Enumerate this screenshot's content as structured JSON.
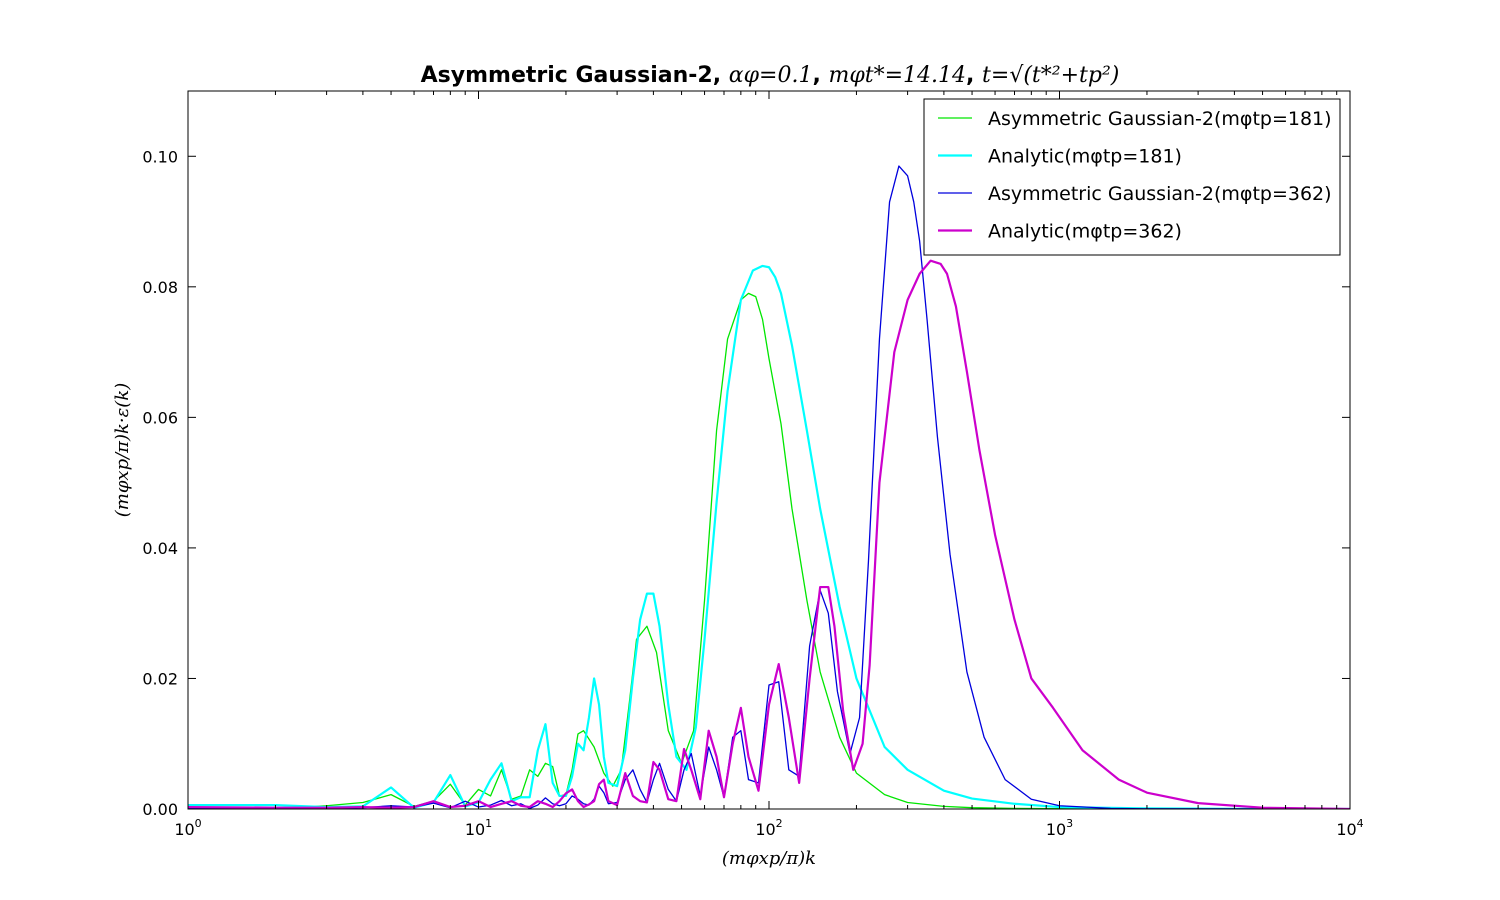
{
  "chart_data": {
    "type": "line",
    "title": {
      "prefix": "Asymmetric Gaussian-2, ",
      "alpha": "αφ=0.1",
      "sep1": ", ",
      "mt": "mφt*=14.14",
      "sep2": ", ",
      "tdef": "t=√(t*²+tp²)"
    },
    "xlabel": "(mφxp/π)k",
    "ylabel": "(mφxp/π)k·ε(k)",
    "x_scale": "log",
    "xlim": [
      1,
      10000
    ],
    "ylim": [
      0,
      0.11
    ],
    "x_ticks": [
      1,
      10,
      100,
      1000,
      10000
    ],
    "x_tick_labels": [
      {
        "base": "10",
        "exp": "0"
      },
      {
        "base": "10",
        "exp": "1"
      },
      {
        "base": "10",
        "exp": "2"
      },
      {
        "base": "10",
        "exp": "3"
      },
      {
        "base": "10",
        "exp": "4"
      }
    ],
    "y_ticks": [
      0,
      0.02,
      0.04,
      0.06,
      0.08,
      0.1
    ],
    "y_tick_labels": [
      "0.00",
      "0.02",
      "0.04",
      "0.06",
      "0.08",
      "0.10"
    ],
    "grid": false,
    "legend_position": "top-right",
    "series": [
      {
        "name": "Asymmetric Gaussian-2(mφtp=181)",
        "color": "#00e600",
        "width": 1.3,
        "x": [
          1,
          2,
          3,
          4,
          5,
          6,
          7,
          8,
          9,
          10,
          11,
          12,
          13,
          14,
          15,
          16,
          17,
          18,
          19,
          20,
          21,
          22,
          23,
          25,
          27,
          29,
          31,
          33,
          35,
          38,
          41,
          45,
          50,
          55,
          60,
          66,
          72,
          80,
          85,
          90,
          95,
          100,
          110,
          120,
          135,
          150,
          175,
          200,
          250,
          300,
          400,
          500,
          700,
          1000,
          2000,
          10000
        ],
        "y": [
          0.0001,
          0.0001,
          0.0005,
          0.001,
          0.0022,
          0.0004,
          0.0012,
          0.0038,
          0.0006,
          0.003,
          0.002,
          0.006,
          0.0015,
          0.002,
          0.006,
          0.005,
          0.007,
          0.0065,
          0.002,
          0.0022,
          0.006,
          0.0115,
          0.012,
          0.0095,
          0.0055,
          0.0035,
          0.006,
          0.016,
          0.026,
          0.028,
          0.024,
          0.012,
          0.007,
          0.012,
          0.032,
          0.058,
          0.072,
          0.078,
          0.079,
          0.0785,
          0.075,
          0.069,
          0.059,
          0.046,
          0.032,
          0.021,
          0.011,
          0.0055,
          0.0022,
          0.001,
          0.0004,
          0.0002,
          0.0001,
          5e-05,
          2e-05,
          0
        ]
      },
      {
        "name": "Analytic(mφtp=181)",
        "color": "#00ffff",
        "width": 2.2,
        "x": [
          1,
          2,
          3,
          4,
          5,
          6,
          7,
          8,
          9,
          10,
          11,
          12,
          13,
          14,
          15,
          16,
          17,
          18,
          19,
          20,
          21,
          22,
          23,
          24,
          25,
          26,
          27,
          28,
          30,
          32,
          34,
          36,
          38,
          40,
          42,
          45,
          48,
          52,
          56,
          60,
          66,
          72,
          80,
          88,
          95,
          100,
          105,
          110,
          120,
          135,
          150,
          175,
          200,
          250,
          300,
          400,
          500,
          700,
          1000,
          2000,
          4000,
          10000
        ],
        "y": [
          0.0006,
          0.0006,
          0.0003,
          0.0004,
          0.0033,
          0.0002,
          0.001,
          0.0052,
          0.0004,
          0.001,
          0.0045,
          0.007,
          0.0012,
          0.0018,
          0.0018,
          0.009,
          0.013,
          0.004,
          0.002,
          0.002,
          0.005,
          0.01,
          0.009,
          0.014,
          0.02,
          0.016,
          0.008,
          0.004,
          0.0035,
          0.009,
          0.02,
          0.029,
          0.033,
          0.033,
          0.028,
          0.016,
          0.008,
          0.006,
          0.0125,
          0.026,
          0.047,
          0.064,
          0.078,
          0.0825,
          0.0832,
          0.083,
          0.0815,
          0.079,
          0.071,
          0.058,
          0.046,
          0.031,
          0.02,
          0.0095,
          0.006,
          0.0028,
          0.0016,
          0.0008,
          0.0003,
          0.0001,
          3e-05,
          0
        ]
      },
      {
        "name": "Asymmetric Gaussian-2(mφtp=362)",
        "color": "#0000dd",
        "width": 1.3,
        "x": [
          1,
          2,
          3,
          4,
          5,
          6,
          7,
          8,
          9,
          10,
          11,
          12,
          13,
          14,
          15,
          16,
          17,
          18,
          19,
          20,
          21,
          22,
          23,
          24,
          25,
          26,
          27,
          28,
          30,
          32,
          34,
          36,
          38,
          40,
          42,
          45,
          48,
          51,
          54,
          58,
          62,
          66,
          70,
          75,
          80,
          85,
          92,
          100,
          108,
          117,
          127,
          138,
          150,
          160,
          172,
          190,
          205,
          220,
          240,
          260,
          280,
          300,
          315,
          330,
          350,
          380,
          420,
          480,
          550,
          650,
          800,
          1000,
          1500,
          2000,
          10000
        ],
        "y": [
          0.0001,
          0.0001,
          0.0001,
          0.0002,
          0.0005,
          0.0003,
          0.0009,
          0.0002,
          0.0012,
          0.0003,
          0.0006,
          0.0013,
          0.0005,
          0.0008,
          0.0001,
          0.0006,
          0.0017,
          0.0008,
          0.0005,
          0.0008,
          0.002,
          0.0015,
          0.0008,
          0.0006,
          0.0015,
          0.0035,
          0.0025,
          0.0008,
          0.001,
          0.0045,
          0.006,
          0.003,
          0.001,
          0.0045,
          0.007,
          0.003,
          0.0012,
          0.006,
          0.0085,
          0.002,
          0.0095,
          0.006,
          0.0018,
          0.011,
          0.012,
          0.0045,
          0.004,
          0.019,
          0.0195,
          0.006,
          0.005,
          0.025,
          0.0335,
          0.03,
          0.018,
          0.0085,
          0.014,
          0.038,
          0.072,
          0.093,
          0.0985,
          0.097,
          0.093,
          0.087,
          0.075,
          0.057,
          0.039,
          0.021,
          0.011,
          0.0045,
          0.0015,
          0.0005,
          0.0001,
          3e-05,
          0
        ]
      },
      {
        "name": "Analytic(mφtp=362)",
        "color": "#cc00cc",
        "width": 2.2,
        "x": [
          1,
          2,
          3,
          4,
          5,
          6,
          7,
          8,
          9,
          10,
          11,
          12,
          13,
          14,
          15,
          16,
          17,
          18,
          19,
          20,
          21,
          22,
          23,
          24,
          25,
          26,
          27,
          28,
          30,
          32,
          34,
          36,
          38,
          40,
          42,
          45,
          48,
          51,
          54,
          58,
          62,
          66,
          70,
          75,
          80,
          85,
          92,
          100,
          108,
          117,
          127,
          138,
          150,
          160,
          168,
          180,
          195,
          210,
          222,
          240,
          270,
          300,
          330,
          360,
          390,
          410,
          440,
          480,
          530,
          600,
          700,
          800,
          950,
          1200,
          1600,
          2000,
          3000,
          5000,
          10000
        ],
        "y": [
          0.0003,
          0.0002,
          0.0002,
          0.0003,
          0.0002,
          0.0003,
          0.0012,
          0.0003,
          0.0005,
          0.0012,
          0.0003,
          0.0008,
          0.0012,
          0.0005,
          0.0003,
          0.0012,
          0.0008,
          0.0003,
          0.0012,
          0.0024,
          0.003,
          0.0012,
          0.0003,
          0.0007,
          0.0012,
          0.0038,
          0.0045,
          0.0012,
          0.0006,
          0.0055,
          0.002,
          0.0012,
          0.001,
          0.0072,
          0.006,
          0.0015,
          0.0012,
          0.0092,
          0.006,
          0.0015,
          0.012,
          0.008,
          0.0018,
          0.01,
          0.0155,
          0.008,
          0.0028,
          0.016,
          0.0222,
          0.014,
          0.004,
          0.02,
          0.034,
          0.034,
          0.028,
          0.015,
          0.006,
          0.01,
          0.022,
          0.05,
          0.07,
          0.078,
          0.082,
          0.084,
          0.0835,
          0.082,
          0.077,
          0.067,
          0.055,
          0.042,
          0.029,
          0.02,
          0.0155,
          0.009,
          0.0045,
          0.0025,
          0.0009,
          0.0002,
          0
        ]
      }
    ]
  }
}
